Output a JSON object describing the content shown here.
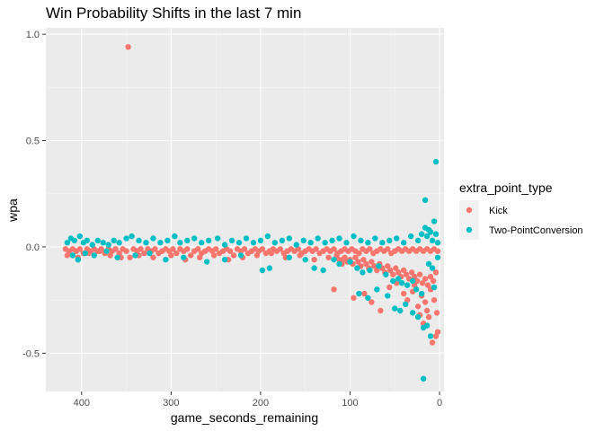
{
  "chart_data": {
    "type": "scatter",
    "title": "Win Probability Shifts in the last 7 min",
    "xlabel": "game_seconds_remaining",
    "ylabel": "wpa",
    "xlim": [
      440,
      -5
    ],
    "ylim": [
      -0.68,
      1.03
    ],
    "x_reversed": true,
    "x_ticks": [
      400,
      300,
      200,
      100,
      0
    ],
    "x_tick_labels": [
      "400",
      "300",
      "200",
      "100",
      "0"
    ],
    "y_ticks": [
      1.0,
      0.5,
      0.0,
      -0.5
    ],
    "y_tick_labels": [
      "1.0",
      "0.5",
      "0.0",
      "-0.5"
    ],
    "grid": true,
    "legend": {
      "title": "extra_point_type",
      "placement": "right",
      "entries": [
        "Kick",
        "Two-PointConversion"
      ]
    },
    "series": [
      {
        "name": "Kick",
        "color": "#F8766D",
        "points": [
          [
            348,
            0.94
          ],
          [
            418,
            -0.01
          ],
          [
            414,
            -0.02
          ],
          [
            410,
            -0.01
          ],
          [
            406,
            -0.02
          ],
          [
            402,
            -0.01
          ],
          [
            398,
            -0.03
          ],
          [
            394,
            -0.01
          ],
          [
            390,
            -0.02
          ],
          [
            386,
            -0.01
          ],
          [
            382,
            -0.02
          ],
          [
            378,
            -0.01
          ],
          [
            374,
            -0.03
          ],
          [
            370,
            -0.01
          ],
          [
            366,
            -0.02
          ],
          [
            362,
            -0.01
          ],
          [
            358,
            -0.03
          ],
          [
            354,
            -0.01
          ],
          [
            350,
            -0.02
          ],
          [
            346,
            -0.05
          ],
          [
            342,
            -0.01
          ],
          [
            338,
            -0.02
          ],
          [
            334,
            -0.01
          ],
          [
            330,
            -0.03
          ],
          [
            326,
            -0.01
          ],
          [
            322,
            -0.02
          ],
          [
            318,
            -0.01
          ],
          [
            314,
            -0.03
          ],
          [
            310,
            -0.02
          ],
          [
            306,
            -0.01
          ],
          [
            302,
            -0.02
          ],
          [
            298,
            -0.01
          ],
          [
            294,
            -0.03
          ],
          [
            290,
            -0.01
          ],
          [
            286,
            -0.02
          ],
          [
            282,
            -0.01
          ],
          [
            278,
            -0.04
          ],
          [
            274,
            -0.02
          ],
          [
            270,
            -0.01
          ],
          [
            266,
            -0.03
          ],
          [
            262,
            -0.02
          ],
          [
            258,
            -0.01
          ],
          [
            254,
            -0.02
          ],
          [
            250,
            -0.01
          ],
          [
            246,
            -0.03
          ],
          [
            242,
            -0.02
          ],
          [
            238,
            -0.01
          ],
          [
            234,
            -0.02
          ],
          [
            230,
            -0.04
          ],
          [
            226,
            -0.01
          ],
          [
            222,
            -0.02
          ],
          [
            218,
            -0.01
          ],
          [
            214,
            -0.03
          ],
          [
            210,
            -0.02
          ],
          [
            206,
            -0.01
          ],
          [
            202,
            -0.02
          ],
          [
            198,
            -0.01
          ],
          [
            194,
            -0.03
          ],
          [
            190,
            -0.02
          ],
          [
            186,
            -0.01
          ],
          [
            182,
            -0.02
          ],
          [
            178,
            -0.01
          ],
          [
            174,
            -0.03
          ],
          [
            170,
            -0.02
          ],
          [
            166,
            -0.01
          ],
          [
            162,
            -0.02
          ],
          [
            158,
            -0.01
          ],
          [
            154,
            -0.03
          ],
          [
            150,
            -0.02
          ],
          [
            146,
            -0.01
          ],
          [
            142,
            -0.02
          ],
          [
            138,
            -0.01
          ],
          [
            134,
            -0.03
          ],
          [
            130,
            -0.02
          ],
          [
            126,
            -0.01
          ],
          [
            122,
            -0.02
          ],
          [
            118,
            -0.01
          ],
          [
            114,
            -0.03
          ],
          [
            110,
            -0.02
          ],
          [
            106,
            -0.01
          ],
          [
            102,
            -0.02
          ],
          [
            98,
            -0.01
          ],
          [
            94,
            -0.02
          ],
          [
            90,
            -0.03
          ],
          [
            86,
            -0.01
          ],
          [
            82,
            -0.02
          ],
          [
            78,
            -0.01
          ],
          [
            74,
            -0.03
          ],
          [
            70,
            -0.02
          ],
          [
            66,
            -0.01
          ],
          [
            62,
            -0.02
          ],
          [
            58,
            -0.01
          ],
          [
            54,
            -0.03
          ],
          [
            50,
            -0.02
          ],
          [
            46,
            -0.01
          ],
          [
            42,
            -0.02
          ],
          [
            38,
            -0.01
          ],
          [
            34,
            -0.02
          ],
          [
            30,
            -0.01
          ],
          [
            26,
            -0.02
          ],
          [
            22,
            -0.01
          ],
          [
            18,
            -0.02
          ],
          [
            14,
            -0.01
          ],
          [
            10,
            -0.02
          ],
          [
            6,
            -0.01
          ],
          [
            2,
            -0.02
          ],
          [
            416,
            -0.04
          ],
          [
            404,
            -0.05
          ],
          [
            392,
            -0.03
          ],
          [
            380,
            -0.02
          ],
          [
            368,
            -0.04
          ],
          [
            356,
            -0.05
          ],
          [
            336,
            -0.04
          ],
          [
            320,
            -0.05
          ],
          [
            300,
            -0.04
          ],
          [
            284,
            -0.06
          ],
          [
            268,
            -0.05
          ],
          [
            252,
            -0.04
          ],
          [
            236,
            -0.06
          ],
          [
            220,
            -0.05
          ],
          [
            204,
            -0.04
          ],
          [
            188,
            -0.03
          ],
          [
            172,
            -0.05
          ],
          [
            156,
            -0.04
          ],
          [
            140,
            -0.06
          ],
          [
            124,
            -0.05
          ],
          [
            108,
            -0.06
          ],
          [
            115,
            -0.04
          ],
          [
            112,
            -0.06
          ],
          [
            109,
            -0.08
          ],
          [
            106,
            -0.05
          ],
          [
            103,
            -0.07
          ],
          [
            100,
            -0.06
          ],
          [
            97,
            -0.08
          ],
          [
            94,
            -0.05
          ],
          [
            91,
            -0.07
          ],
          [
            88,
            -0.09
          ],
          [
            85,
            -0.06
          ],
          [
            82,
            -0.08
          ],
          [
            79,
            -0.1
          ],
          [
            76,
            -0.07
          ],
          [
            73,
            -0.09
          ],
          [
            70,
            -0.11
          ],
          [
            67,
            -0.08
          ],
          [
            64,
            -0.1
          ],
          [
            61,
            -0.12
          ],
          [
            58,
            -0.09
          ],
          [
            55,
            -0.11
          ],
          [
            52,
            -0.13
          ],
          [
            49,
            -0.1
          ],
          [
            46,
            -0.12
          ],
          [
            43,
            -0.14
          ],
          [
            40,
            -0.11
          ],
          [
            37,
            -0.13
          ],
          [
            34,
            -0.15
          ],
          [
            31,
            -0.12
          ],
          [
            28,
            -0.14
          ],
          [
            25,
            -0.16
          ],
          [
            22,
            -0.13
          ],
          [
            19,
            -0.17
          ],
          [
            16,
            -0.15
          ],
          [
            13,
            -0.18
          ],
          [
            10,
            -0.14
          ],
          [
            7,
            -0.16
          ],
          [
            4,
            -0.12
          ],
          [
            118,
            -0.2
          ],
          [
            96,
            -0.24
          ],
          [
            84,
            -0.22
          ],
          [
            76,
            -0.26
          ],
          [
            66,
            -0.3
          ],
          [
            56,
            -0.19
          ],
          [
            48,
            -0.17
          ],
          [
            40,
            -0.22
          ],
          [
            36,
            -0.25
          ],
          [
            30,
            -0.21
          ],
          [
            24,
            -0.28
          ],
          [
            20,
            -0.23
          ],
          [
            16,
            -0.26
          ],
          [
            14,
            -0.3
          ],
          [
            12,
            -0.33
          ],
          [
            10,
            -0.2
          ],
          [
            8,
            -0.45
          ],
          [
            4,
            -0.42
          ],
          [
            2,
            -0.4
          ],
          [
            18,
            -0.36
          ],
          [
            22,
            -0.32
          ],
          [
            28,
            -0.18
          ],
          [
            6,
            -0.25
          ],
          [
            3,
            -0.31
          ]
        ]
      },
      {
        "name": "Two-PointConversion",
        "color": "#00BFC4",
        "points": [
          [
            416,
            0.02
          ],
          [
            412,
            0.04
          ],
          [
            408,
            0.03
          ],
          [
            402,
            0.05
          ],
          [
            398,
            0.02
          ],
          [
            394,
            0.03
          ],
          [
            388,
            0.01
          ],
          [
            382,
            0.03
          ],
          [
            376,
            0.02
          ],
          [
            370,
            0.01
          ],
          [
            364,
            0.03
          ],
          [
            358,
            0.02
          ],
          [
            350,
            0.04
          ],
          [
            344,
            0.05
          ],
          [
            336,
            0.03
          ],
          [
            328,
            0.02
          ],
          [
            320,
            0.04
          ],
          [
            312,
            0.02
          ],
          [
            304,
            0.03
          ],
          [
            296,
            0.05
          ],
          [
            290,
            0.02
          ],
          [
            282,
            0.03
          ],
          [
            274,
            0.04
          ],
          [
            266,
            0.02
          ],
          [
            258,
            0.03
          ],
          [
            248,
            0.04
          ],
          [
            240,
            0.01
          ],
          [
            232,
            0.03
          ],
          [
            224,
            0.02
          ],
          [
            216,
            0.04
          ],
          [
            208,
            0.02
          ],
          [
            200,
            0.03
          ],
          [
            192,
            0.05
          ],
          [
            184,
            0.02
          ],
          [
            176,
            0.03
          ],
          [
            168,
            0.04
          ],
          [
            160,
            0.01
          ],
          [
            152,
            0.03
          ],
          [
            144,
            0.02
          ],
          [
            136,
            0.04
          ],
          [
            128,
            0.02
          ],
          [
            120,
            0.03
          ],
          [
            112,
            0.04
          ],
          [
            104,
            0.02
          ],
          [
            96,
            0.05
          ],
          [
            88,
            0.03
          ],
          [
            80,
            0.02
          ],
          [
            72,
            0.04
          ],
          [
            64,
            0.02
          ],
          [
            56,
            0.03
          ],
          [
            48,
            0.04
          ],
          [
            40,
            0.02
          ],
          [
            32,
            0.05
          ],
          [
            24,
            0.03
          ],
          [
            20,
            0.06
          ],
          [
            16,
            0.09
          ],
          [
            14,
            0.05
          ],
          [
            12,
            0.08
          ],
          [
            10,
            0.07
          ],
          [
            8,
            0.03
          ],
          [
            6,
            0.12
          ],
          [
            4,
            0.06
          ],
          [
            2,
            0.02
          ],
          [
            16,
            0.22
          ],
          [
            4,
            0.4
          ],
          [
            410,
            -0.04
          ],
          [
            404,
            -0.06
          ],
          [
            396,
            -0.03
          ],
          [
            386,
            -0.04
          ],
          [
            372,
            -0.02
          ],
          [
            360,
            -0.05
          ],
          [
            340,
            -0.04
          ],
          [
            324,
            -0.03
          ],
          [
            306,
            -0.06
          ],
          [
            286,
            -0.05
          ],
          [
            260,
            -0.07
          ],
          [
            240,
            -0.06
          ],
          [
            222,
            -0.04
          ],
          [
            198,
            -0.11
          ],
          [
            190,
            -0.1
          ],
          [
            168,
            -0.05
          ],
          [
            150,
            -0.06
          ],
          [
            140,
            -0.1
          ],
          [
            130,
            -0.11
          ],
          [
            118,
            -0.06
          ],
          [
            112,
            -0.08
          ],
          [
            100,
            -0.07
          ],
          [
            92,
            -0.1
          ],
          [
            86,
            -0.12
          ],
          [
            78,
            -0.11
          ],
          [
            68,
            -0.09
          ],
          [
            60,
            -0.13
          ],
          [
            52,
            -0.16
          ],
          [
            46,
            -0.15
          ],
          [
            42,
            -0.17
          ],
          [
            36,
            -0.18
          ],
          [
            30,
            -0.16
          ],
          [
            26,
            -0.2
          ],
          [
            20,
            -0.22
          ],
          [
            12,
            -0.08
          ],
          [
            8,
            -0.1
          ],
          [
            6,
            -0.19
          ],
          [
            2,
            -0.05
          ],
          [
            90,
            -0.22
          ],
          [
            80,
            -0.24
          ],
          [
            70,
            -0.2
          ],
          [
            58,
            -0.23
          ],
          [
            50,
            -0.29
          ],
          [
            44,
            -0.3
          ],
          [
            38,
            -0.27
          ],
          [
            30,
            -0.31
          ],
          [
            24,
            -0.33
          ],
          [
            18,
            -0.38
          ],
          [
            14,
            -0.37
          ],
          [
            10,
            -0.42
          ],
          [
            18,
            -0.62
          ]
        ]
      }
    ]
  }
}
